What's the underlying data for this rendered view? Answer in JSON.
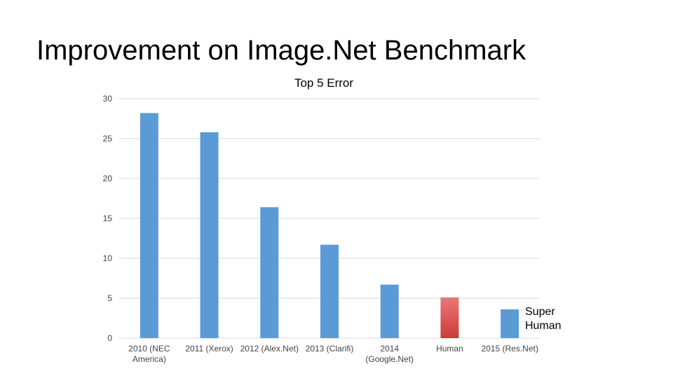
{
  "slide": {
    "title": "Improvement on Image.Net Benchmark"
  },
  "annotation": {
    "line1": "Super",
    "line2": "Human"
  },
  "chart_data": {
    "type": "bar",
    "title": "Top 5 Error",
    "xlabel": "",
    "ylabel": "",
    "ylim": [
      0,
      30
    ],
    "yticks": [
      0,
      5,
      10,
      15,
      20,
      25,
      30
    ],
    "grid": true,
    "categories": [
      [
        "2010 (NEC",
        "America)"
      ],
      [
        "2011 (Xerox)"
      ],
      [
        "2012 (Alex.Net)"
      ],
      [
        "2013 (Clarifi)"
      ],
      [
        "2014",
        "(Google.Net)"
      ],
      [
        "Human"
      ],
      [
        "2015 (Res.Net)"
      ]
    ],
    "values": [
      28.2,
      25.8,
      16.4,
      11.7,
      6.7,
      5.1,
      3.6
    ],
    "colors": [
      "#5b9bd5",
      "#5b9bd5",
      "#5b9bd5",
      "#5b9bd5",
      "#5b9bd5",
      "#dd5555",
      "#5b9bd5"
    ],
    "gridColor": "#d9d9d9",
    "tickColor": "#444444"
  }
}
